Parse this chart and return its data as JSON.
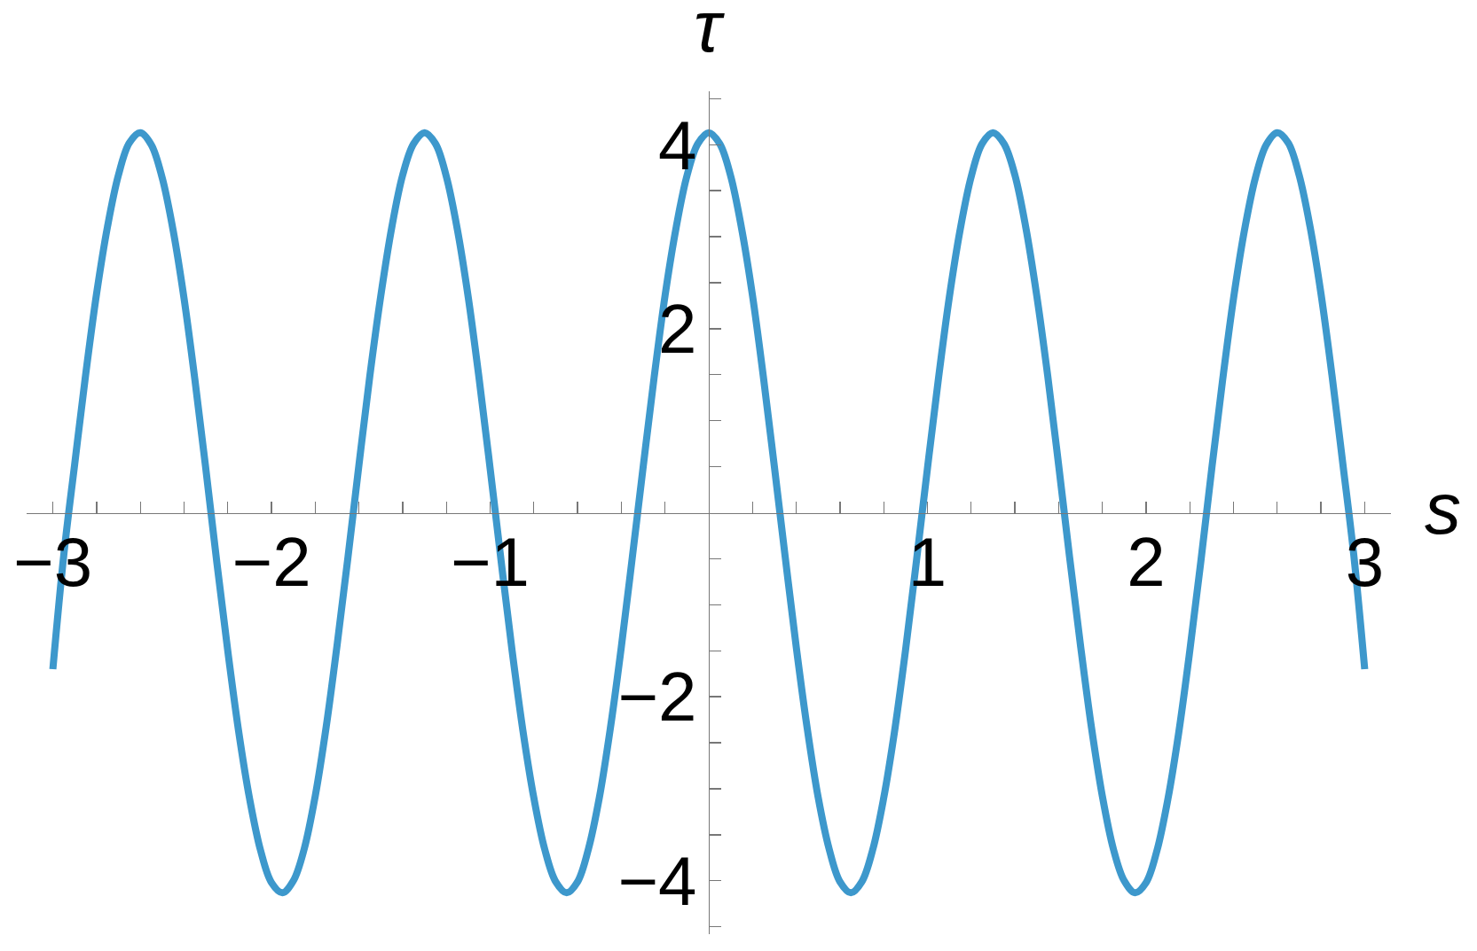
{
  "chart_data": {
    "type": "line",
    "xlabel": "s",
    "ylabel": "τ",
    "x": [
      -3.0,
      -2.95,
      -2.9,
      -2.85,
      -2.8,
      -2.75,
      -2.7,
      -2.65,
      -2.6,
      -2.55,
      -2.5,
      -2.45,
      -2.4,
      -2.35,
      -2.3,
      -2.25,
      -2.2,
      -2.15,
      -2.1,
      -2.05,
      -2.0,
      -1.95,
      -1.9,
      -1.85,
      -1.8,
      -1.75,
      -1.7,
      -1.65,
      -1.6,
      -1.55,
      -1.5,
      -1.45,
      -1.4,
      -1.35,
      -1.3,
      -1.25,
      -1.2,
      -1.15,
      -1.1,
      -1.05,
      -1.0,
      -0.95,
      -0.9,
      -0.85,
      -0.8,
      -0.75,
      -0.7,
      -0.65,
      -0.6,
      -0.55,
      -0.5,
      -0.45,
      -0.4,
      -0.35,
      -0.3,
      -0.25,
      -0.2,
      -0.15,
      -0.1,
      -0.05,
      0,
      0.05,
      0.1,
      0.15,
      0.2,
      0.25,
      0.3,
      0.35,
      0.4,
      0.45,
      0.5,
      0.55,
      0.6,
      0.65,
      0.7,
      0.75,
      0.8,
      0.85,
      0.9,
      0.95,
      1.0,
      1.05,
      1.1,
      1.15,
      1.2,
      1.25,
      1.3,
      1.35,
      1.4,
      1.45,
      1.5,
      1.55,
      1.6,
      1.65,
      1.7,
      1.75,
      1.8,
      1.85,
      1.9,
      1.95,
      2.0,
      2.05,
      2.1,
      2.15,
      2.2,
      2.25,
      2.3,
      2.35,
      2.4,
      2.45,
      2.5,
      2.55,
      2.6,
      2.65,
      2.7,
      2.75,
      2.8,
      2.85,
      2.9,
      2.95,
      3.0
    ],
    "series": [
      {
        "color": "#3d98cc",
        "values": [
          -1.7,
          -0.46,
          0.53,
          1.5,
          2.38,
          3.11,
          3.67,
          4.02,
          4.13,
          4.0,
          3.64,
          3.07,
          2.33,
          1.44,
          0.47,
          -0.54,
          -1.5,
          -2.38,
          -3.11,
          -3.67,
          -4.02,
          -4.13,
          -4.0,
          -3.65,
          -3.08,
          -2.33,
          -1.44,
          -0.48,
          0.52,
          1.49,
          2.36,
          3.1,
          3.67,
          4.01,
          4.13,
          4.01,
          3.65,
          3.08,
          2.34,
          1.45,
          0.48,
          -0.52,
          -1.49,
          -2.37,
          -3.1,
          -3.66,
          -4.01,
          -4.13,
          -4.01,
          -3.65,
          -3.09,
          -2.34,
          -1.46,
          -0.49,
          0.5,
          1.47,
          2.36,
          3.09,
          3.66,
          4.01,
          4.13,
          4.01,
          3.66,
          3.09,
          2.36,
          1.47,
          0.5,
          -0.49,
          -1.46,
          -2.34,
          -3.09,
          -3.65,
          -4.01,
          -4.13,
          -4.01,
          -3.66,
          -3.1,
          -2.37,
          -1.49,
          -0.52,
          0.48,
          1.45,
          2.34,
          3.08,
          3.65,
          4.01,
          4.13,
          4.01,
          3.67,
          3.1,
          2.36,
          1.49,
          0.52,
          -0.48,
          -1.44,
          -2.33,
          -3.08,
          -3.65,
          -4.0,
          -4.13,
          -4.02,
          -3.67,
          -3.11,
          -2.38,
          -1.5,
          -0.54,
          0.47,
          1.44,
          2.33,
          3.07,
          3.64,
          4.0,
          4.13,
          4.02,
          3.67,
          3.11,
          2.38,
          1.5,
          0.53,
          -0.46,
          -1.7
        ]
      }
    ],
    "xlim": [
      -3.12,
      3.12
    ],
    "ylim": [
      -4.58,
      4.58
    ],
    "xticks": [
      -3,
      {
        "value": -2.8,
        "label": null
      },
      {
        "value": -2.6,
        "label": null
      },
      {
        "value": -2.4,
        "label": null
      },
      {
        "value": -2.2,
        "label": null
      },
      -2,
      {
        "value": -1.8,
        "label": null
      },
      {
        "value": -1.6,
        "label": null
      },
      {
        "value": -1.4,
        "label": null
      },
      {
        "value": -1.2,
        "label": null
      },
      -1,
      {
        "value": -0.8,
        "label": null
      },
      {
        "value": -0.6,
        "label": null
      },
      {
        "value": -0.4,
        "label": null
      },
      {
        "value": -0.2,
        "label": null
      },
      {
        "value": 0.2,
        "label": null
      },
      {
        "value": 0.4,
        "label": null
      },
      {
        "value": 0.6,
        "label": null
      },
      {
        "value": 0.8,
        "label": null
      },
      1,
      {
        "value": 1.2,
        "label": null
      },
      {
        "value": 1.4,
        "label": null
      },
      {
        "value": 1.6,
        "label": null
      },
      {
        "value": 1.8,
        "label": null
      },
      2,
      {
        "value": 2.2,
        "label": null
      },
      {
        "value": 2.4,
        "label": null
      },
      {
        "value": 2.6,
        "label": null
      },
      {
        "value": 2.8,
        "label": null
      },
      3
    ],
    "yticks": [
      {
        "value": -4.5,
        "label": null
      },
      -4,
      {
        "value": -3.5,
        "label": null
      },
      {
        "value": -3,
        "label": null
      },
      {
        "value": -2.5,
        "label": null
      },
      -2,
      {
        "value": -1.5,
        "label": null
      },
      {
        "value": -1,
        "label": null
      },
      {
        "value": -0.5,
        "label": null
      },
      {
        "value": 0.5,
        "label": null
      },
      {
        "value": 1,
        "label": null
      },
      {
        "value": 1.5,
        "label": null
      },
      2,
      {
        "value": 2.5,
        "label": null
      },
      {
        "value": 3,
        "label": null
      },
      {
        "value": 3.5,
        "label": null
      },
      4,
      {
        "value": 4.5,
        "label": null
      }
    ]
  }
}
